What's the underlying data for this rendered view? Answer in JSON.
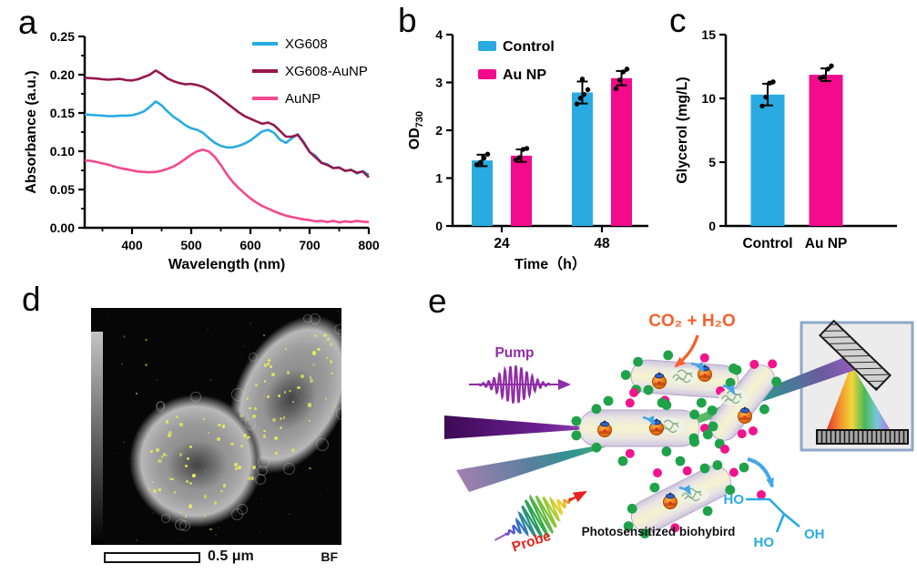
{
  "figure": {
    "background": "#ffffff",
    "panels": [
      {
        "label": "a"
      },
      {
        "label": "b"
      },
      {
        "label": "c"
      },
      {
        "label": "d"
      },
      {
        "label": "e"
      }
    ]
  },
  "colors": {
    "control_blue": "#29abe2",
    "aunp_magenta": "#f40a8c",
    "xg608_aunp_maroon": "#96174d",
    "aunp_pink": "#f4488f",
    "co2_orange": "#f4612d",
    "pump_purple": "#8f2da5",
    "probe_red": "#e8231e",
    "glycerol_blue": "#29abe2",
    "green_dot": "#1fa24a",
    "magenta_dot": "#f2148c",
    "gold_dot": "#e9e95e"
  },
  "chart_data": [
    {
      "id": "a",
      "type": "line",
      "xlabel": "Wavelength (nm)",
      "ylabel": "Absorbance (a.u.)",
      "xlim": [
        320,
        800
      ],
      "ylim": [
        0,
        0.25
      ],
      "xticks": [
        400,
        500,
        600,
        700,
        800
      ],
      "yticks": [
        0,
        0.05,
        0.1,
        0.15,
        0.2,
        0.25
      ],
      "ydecimals": 2,
      "x_start": 320,
      "x_step": 10,
      "legend_position": "top-right",
      "series": [
        {
          "name": "XG608",
          "color": "#29abe2",
          "y": [
            0.148,
            0.1475,
            0.147,
            0.1465,
            0.146,
            0.146,
            0.1465,
            0.1465,
            0.147,
            0.149,
            0.152,
            0.158,
            0.165,
            0.16,
            0.152,
            0.145,
            0.14,
            0.134,
            0.13,
            0.128,
            0.124,
            0.117,
            0.111,
            0.107,
            0.105,
            0.105,
            0.107,
            0.11,
            0.114,
            0.12,
            0.126,
            0.128,
            0.124,
            0.115,
            0.111,
            0.117,
            0.122,
            0.112,
            0.099,
            0.094,
            0.085,
            0.083,
            0.078,
            0.079,
            0.074,
            0.076,
            0.071,
            0.074,
            0.069
          ]
        },
        {
          "name": "XG608-AuNP",
          "color": "#96174d",
          "y": [
            0.196,
            0.1955,
            0.195,
            0.194,
            0.1935,
            0.194,
            0.1945,
            0.193,
            0.1925,
            0.194,
            0.197,
            0.2,
            0.2055,
            0.201,
            0.195,
            0.1915,
            0.189,
            0.1875,
            0.188,
            0.1865,
            0.184,
            0.18,
            0.175,
            0.169,
            0.163,
            0.157,
            0.151,
            0.146,
            0.1425,
            0.139,
            0.136,
            0.1375,
            0.134,
            0.1265,
            0.119,
            0.119,
            0.1215,
            0.111,
            0.099,
            0.092,
            0.085,
            0.082,
            0.078,
            0.0785,
            0.0745,
            0.0755,
            0.072,
            0.0735,
            0.066
          ]
        },
        {
          "name": "AuNP",
          "color": "#f4488f",
          "y": [
            0.088,
            0.0875,
            0.086,
            0.084,
            0.0825,
            0.08,
            0.078,
            0.0765,
            0.075,
            0.0735,
            0.073,
            0.0725,
            0.073,
            0.0745,
            0.077,
            0.08,
            0.0845,
            0.09,
            0.0955,
            0.1,
            0.102,
            0.0995,
            0.0925,
            0.082,
            0.07,
            0.06,
            0.052,
            0.045,
            0.0385,
            0.033,
            0.0285,
            0.025,
            0.0215,
            0.0185,
            0.016,
            0.014,
            0.0125,
            0.011,
            0.01,
            0.0085,
            0.009,
            0.0075,
            0.009,
            0.007,
            0.0085,
            0.0075,
            0.009,
            0.008,
            0.0075
          ]
        }
      ]
    },
    {
      "id": "b",
      "type": "grouped_bar",
      "xlabel": "Time（h）",
      "ylabel": "OD",
      "ylabel_sub": "730",
      "ylim": [
        0,
        4
      ],
      "yticks": [
        0,
        1,
        2,
        3,
        4
      ],
      "categories": [
        "24",
        "48"
      ],
      "legend": true,
      "series": [
        {
          "name": "Control",
          "color": "#29abe2",
          "values": [
            1.37,
            2.79
          ],
          "errors": [
            0.12,
            0.23
          ],
          "points": [
            [
              1.28,
              1.33,
              1.42,
              1.5
            ],
            [
              2.55,
              2.67,
              2.75,
              2.85,
              3.07
            ]
          ]
        },
        {
          "name": "Au NP",
          "color": "#f40a8c",
          "values": [
            1.47,
            3.09
          ],
          "errors": [
            0.13,
            0.15
          ],
          "points": [
            [
              1.38,
              1.43,
              1.6,
              1.62
            ],
            [
              2.87,
              3.05,
              3.22,
              3.28
            ]
          ]
        }
      ]
    },
    {
      "id": "c",
      "type": "bar",
      "xlabel": "",
      "ylabel": "Glycerol (mg/L)",
      "ylim": [
        0,
        15
      ],
      "yticks": [
        0,
        5,
        10,
        15
      ],
      "bars": [
        {
          "label": "Control",
          "color": "#29abe2",
          "value": 10.3,
          "error": 0.85,
          "points": [
            9.4,
            10.1,
            11.2,
            11.3
          ]
        },
        {
          "label": "Au NP",
          "color": "#f40a8c",
          "value": 11.85,
          "error": 0.5,
          "points": [
            11.6,
            11.7,
            12.3,
            12.55
          ]
        }
      ]
    }
  ],
  "panel_d": {
    "scale_label": "0.5 μm",
    "mode_label": "BF"
  },
  "panel_e": {
    "pump_label": "Pump",
    "probe_label": "Probe",
    "co2_label": "CO₂ + H₂O",
    "caption": "Photosensitized biohybird",
    "molecule": {
      "ho_top": "HO",
      "ho_bottom": "HO",
      "oh": "OH"
    }
  }
}
